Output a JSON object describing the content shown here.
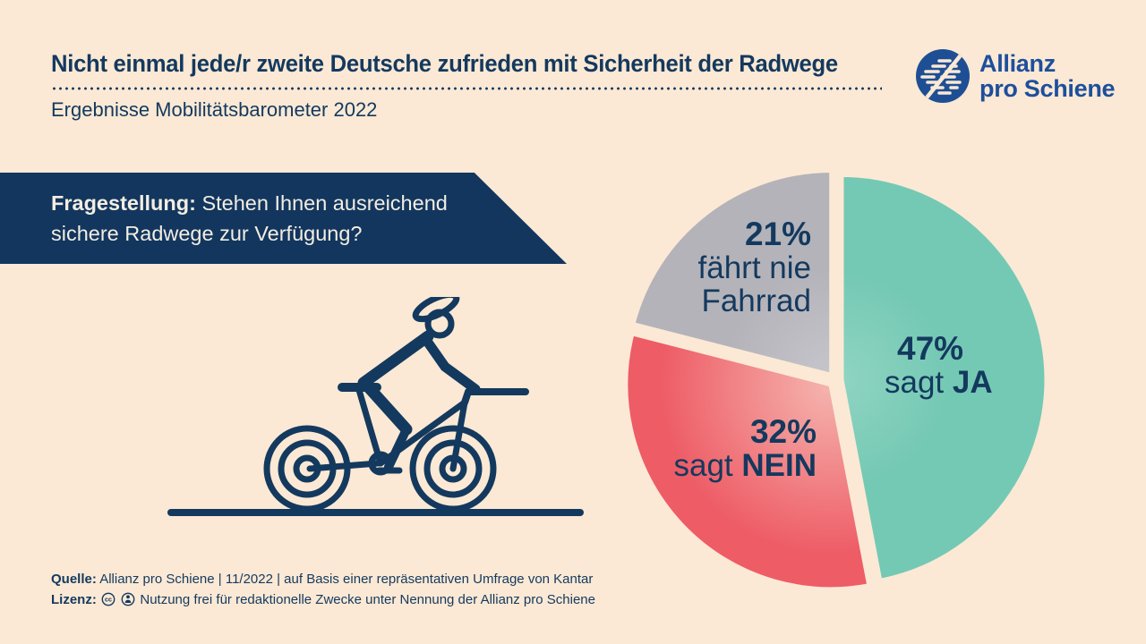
{
  "colors": {
    "background": "#FBE9D5",
    "navy": "#14395E",
    "banner": "#12365E",
    "banner_text": "#F3EDE2",
    "logo_blue": "#1E4F94",
    "logo_text_blue": "#1D4F9C"
  },
  "header": {
    "title": "Nicht einmal jede/r zweite Deutsche zufrieden mit Sicherheit der Radwege",
    "subtitle": "Ergebnisse Mobilitätsbarometer 2022"
  },
  "logo": {
    "name": "Allianz pro Schiene",
    "line1": "Allianz",
    "line2": "pro Schiene"
  },
  "question": {
    "label": "Fragestellung:",
    "line1": "Stehen Ihnen ausreichend",
    "line2": "sichere Radwege zur Verfügung?"
  },
  "chart_data": {
    "type": "pie",
    "title": "Stehen Ihnen ausreichend sichere Radwege zur Verfügung?",
    "start_angle_deg": 0,
    "direction": "clockwise",
    "exploded": true,
    "slices": [
      {
        "label": "sagt JA",
        "value": 47,
        "pct": "47%",
        "label_regular": "sagt",
        "label_bold": "JA",
        "color": "#74C9B4",
        "color_inner": "#8FD4C2"
      },
      {
        "label": "sagt NEIN",
        "value": 32,
        "pct": "32%",
        "label_regular": "sagt",
        "label_bold": "NEIN",
        "color": "#EE5C66",
        "color_inner": "#F5B5AF"
      },
      {
        "label": "fährt nie Fahrrad",
        "value": 21,
        "pct": "21%",
        "label_line1": "fährt nie",
        "label_line2": "Fahrrad",
        "color": "#B4B3B9",
        "color_inner": "#C6C5CB"
      }
    ]
  },
  "footer": {
    "source_label": "Quelle:",
    "source_text": "Allianz pro Schiene | 11/2022 | auf Basis einer repräsentativen Umfrage von Kantar",
    "license_label": "Lizenz:",
    "license_text": "Nutzung frei für redaktionelle Zwecke unter Nennung der Allianz pro Schiene"
  }
}
